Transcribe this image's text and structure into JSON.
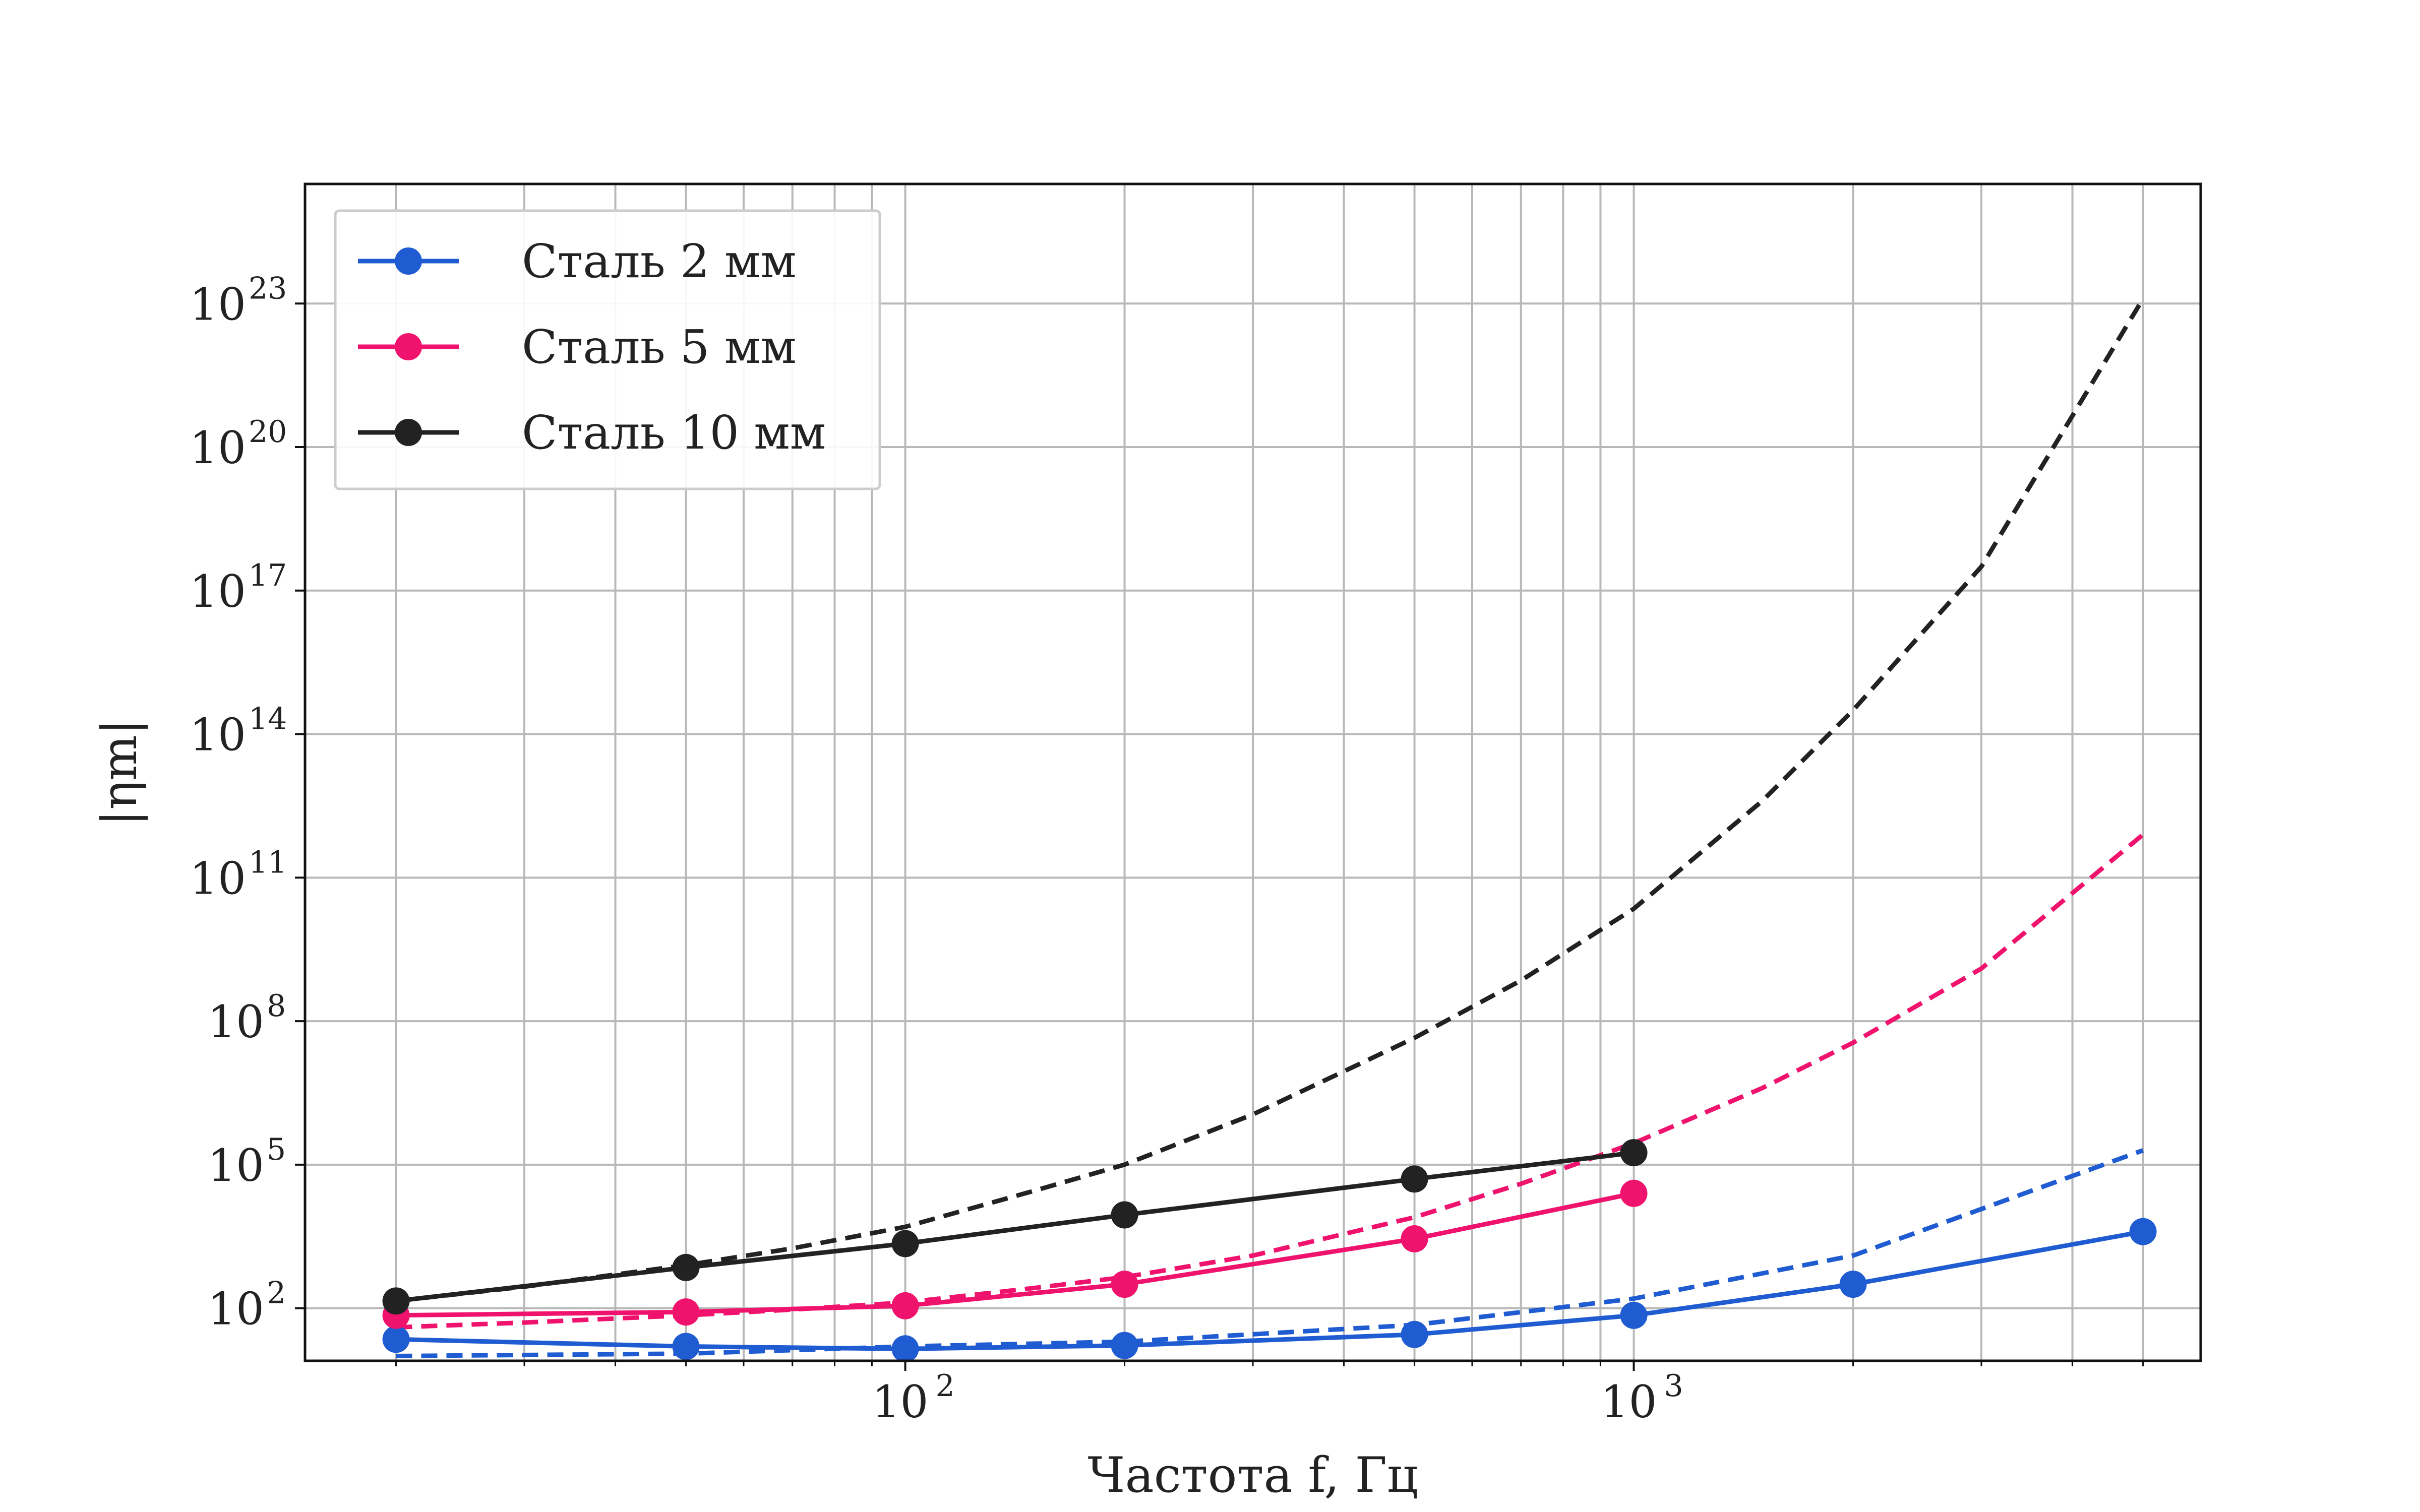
{
  "chart_data": {
    "type": "line",
    "title": "",
    "xlabel": "Частота f, Гц",
    "ylabel": "|ηm|",
    "xscale": "log",
    "yscale": "log",
    "xlim": [
      15,
      6000
    ],
    "ylim_exp": [
      0.9,
      25.5
    ],
    "grid": true,
    "legend": {
      "position": "top-left"
    },
    "x_ticks": [
      {
        "value": 100,
        "label": "10",
        "sup": "2"
      },
      {
        "value": 1000,
        "label": "10",
        "sup": "3"
      }
    ],
    "y_ticks": [
      {
        "exp": 2,
        "label": "10",
        "sup": "2"
      },
      {
        "exp": 5,
        "label": "10",
        "sup": "5"
      },
      {
        "exp": 8,
        "label": "10",
        "sup": "8"
      },
      {
        "exp": 11,
        "label": "10",
        "sup": "11"
      },
      {
        "exp": 14,
        "label": "10",
        "sup": "14"
      },
      {
        "exp": 17,
        "label": "10",
        "sup": "17"
      },
      {
        "exp": 20,
        "label": "10",
        "sup": "20"
      },
      {
        "exp": 23,
        "label": "10",
        "sup": "23"
      }
    ],
    "series": [
      {
        "name": "Сталь 2 мм",
        "color": "#1f5bd1",
        "measured": {
          "x": [
            20,
            50,
            100,
            200,
            500,
            1000,
            2000,
            5000
          ],
          "y_exp": [
            1.35,
            1.2,
            1.15,
            1.22,
            1.45,
            1.85,
            2.5,
            3.6
          ]
        },
        "model": {
          "x": [
            20,
            50,
            100,
            200,
            500,
            1000,
            2000,
            5000
          ],
          "y_exp": [
            1.0,
            1.05,
            1.2,
            1.3,
            1.65,
            2.2,
            3.1,
            5.3
          ]
        }
      },
      {
        "name": "Сталь 5 мм",
        "color": "#f0136d",
        "measured": {
          "x": [
            20,
            50,
            100,
            200,
            500,
            1000
          ],
          "y_exp": [
            1.85,
            1.92,
            2.05,
            2.5,
            3.45,
            4.4
          ]
        },
        "model": {
          "x": [
            20,
            30,
            50,
            70,
            100,
            150,
            200,
            300,
            500,
            700,
            1000,
            1500,
            2000,
            3000,
            5000
          ],
          "y_exp": [
            1.6,
            1.7,
            1.85,
            1.97,
            2.12,
            2.42,
            2.65,
            3.1,
            3.9,
            4.6,
            5.45,
            6.6,
            7.55,
            9.1,
            11.9
          ]
        }
      },
      {
        "name": "Сталь 10 мм",
        "color": "#222222",
        "measured": {
          "x": [
            20,
            50,
            100,
            200,
            500,
            1000
          ],
          "y_exp": [
            2.15,
            2.85,
            3.35,
            3.95,
            4.7,
            5.25
          ]
        },
        "model": {
          "x": [
            20,
            30,
            50,
            70,
            100,
            150,
            200,
            300,
            500,
            700,
            1000,
            1500,
            2000,
            3000,
            5000
          ],
          "y_exp": [
            2.15,
            2.45,
            2.9,
            3.25,
            3.7,
            4.45,
            5.0,
            6.05,
            7.65,
            8.85,
            10.35,
            12.6,
            14.5,
            17.5,
            23.1
          ]
        }
      }
    ]
  }
}
